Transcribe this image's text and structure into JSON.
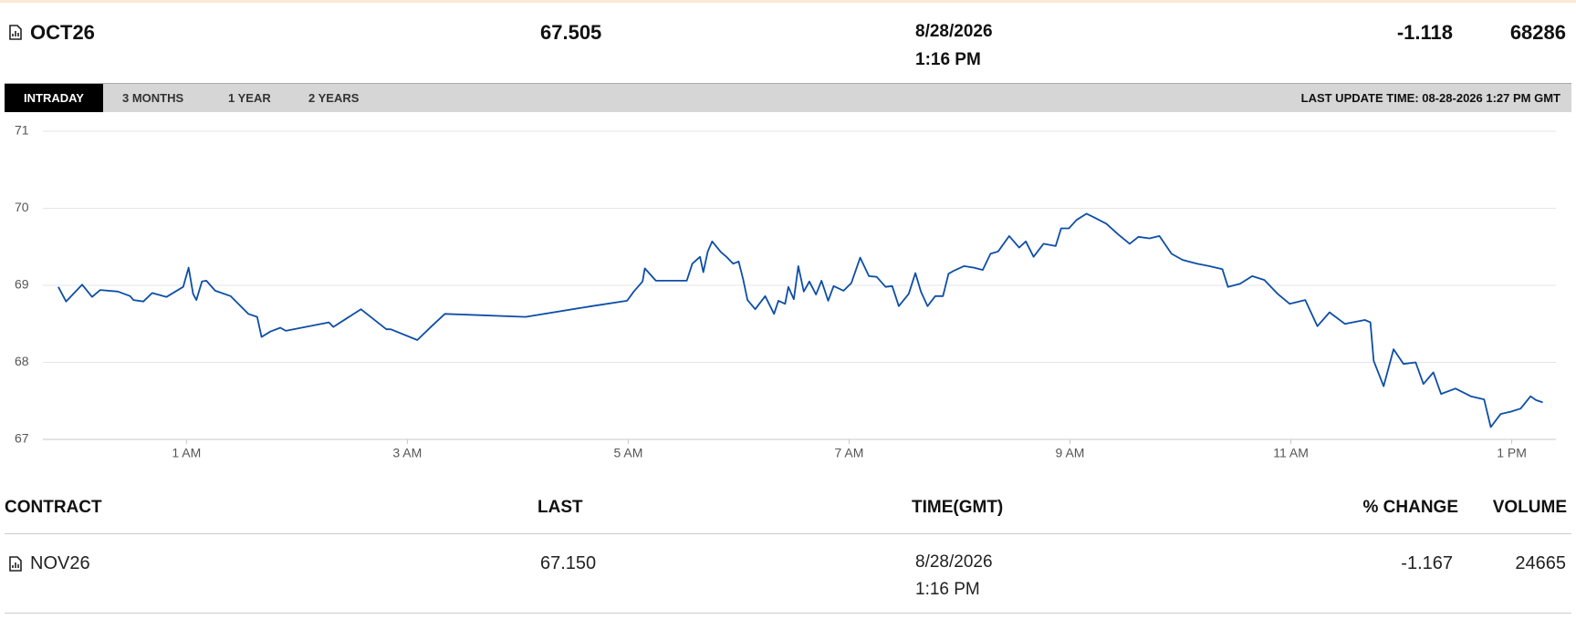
{
  "header": {
    "contract": "OCT26",
    "last": "67.505",
    "date": "8/28/2026",
    "time": "1:16 PM",
    "change": "-1.118",
    "volume": "68286"
  },
  "tabs": [
    "INTRADAY",
    "3 MONTHS",
    "1 YEAR",
    "2 YEARS"
  ],
  "last_update": "LAST UPDATE TIME: 08-28-2026 1:27 PM GMT",
  "chart_data": {
    "type": "line",
    "x": [
      -0.16,
      -0.09,
      0.055,
      0.145,
      0.22,
      0.38,
      0.49,
      0.52,
      0.61,
      0.69,
      0.82,
      0.97,
      1.02,
      1.06,
      1.09,
      1.14,
      1.18,
      1.26,
      1.4,
      1.56,
      1.64,
      1.68,
      1.76,
      1.85,
      1.9,
      2.29,
      2.33,
      2.58,
      2.81,
      2.85,
      3.09,
      3.22,
      3.34,
      4.07,
      4.67,
      4.99,
      5.05,
      5.13,
      5.15,
      5.25,
      5.53,
      5.58,
      5.65,
      5.68,
      5.72,
      5.76,
      5.84,
      5.89,
      5.95,
      6.0,
      6.04,
      6.08,
      6.15,
      6.24,
      6.32,
      6.36,
      6.42,
      6.45,
      6.5,
      6.54,
      6.59,
      6.64,
      6.7,
      6.75,
      6.81,
      6.86,
      6.95,
      7.02,
      7.1,
      7.18,
      7.25,
      7.33,
      7.39,
      7.45,
      7.54,
      7.6,
      7.65,
      7.71,
      7.78,
      7.85,
      7.9,
      7.95,
      8.04,
      8.13,
      8.21,
      8.28,
      8.35,
      8.45,
      8.54,
      8.6,
      8.67,
      8.76,
      8.87,
      8.92,
      8.99,
      9.06,
      9.15,
      9.22,
      9.33,
      9.43,
      9.54,
      9.62,
      9.72,
      9.81,
      9.92,
      10.02,
      10.15,
      10.26,
      10.38,
      10.43,
      10.54,
      10.65,
      10.76,
      10.88,
      10.99,
      11.13,
      11.24,
      11.35,
      11.49,
      11.67,
      11.72,
      11.75,
      11.84,
      11.93,
      12.02,
      12.13,
      12.2,
      12.29,
      12.36,
      12.49,
      12.63,
      12.75,
      12.81,
      12.9,
      12.99,
      13.08,
      13.17,
      13.22,
      13.28
    ],
    "series": [
      {
        "color": "#0d4ea6",
        "values": [
          68.98,
          68.79,
          69.01,
          68.85,
          68.94,
          68.92,
          68.86,
          68.81,
          68.79,
          68.9,
          68.85,
          68.98,
          69.23,
          68.89,
          68.81,
          69.05,
          69.06,
          68.93,
          68.86,
          68.63,
          68.59,
          68.33,
          68.4,
          68.45,
          68.41,
          68.52,
          68.46,
          68.69,
          68.43,
          68.43,
          68.29,
          68.47,
          68.63,
          68.59,
          68.73,
          68.8,
          68.92,
          69.05,
          69.22,
          69.06,
          69.06,
          69.28,
          69.37,
          69.17,
          69.44,
          69.57,
          69.43,
          69.37,
          69.28,
          69.31,
          69.08,
          68.81,
          68.69,
          68.86,
          68.63,
          68.8,
          68.76,
          68.98,
          68.82,
          69.25,
          68.92,
          69.05,
          68.88,
          69.06,
          68.8,
          68.99,
          68.93,
          69.03,
          69.36,
          69.12,
          69.11,
          68.98,
          68.99,
          68.73,
          68.89,
          69.16,
          68.92,
          68.73,
          68.86,
          68.86,
          69.15,
          69.19,
          69.25,
          69.23,
          69.2,
          69.41,
          69.44,
          69.64,
          69.49,
          69.57,
          69.37,
          69.54,
          69.51,
          69.74,
          69.74,
          69.85,
          69.93,
          69.88,
          69.8,
          69.67,
          69.54,
          69.63,
          69.61,
          69.64,
          69.41,
          69.33,
          69.28,
          69.25,
          69.21,
          68.98,
          69.02,
          69.12,
          69.07,
          68.89,
          68.76,
          68.81,
          68.47,
          68.65,
          68.5,
          68.55,
          68.52,
          68.02,
          67.69,
          68.17,
          67.98,
          68.0,
          67.72,
          67.87,
          67.59,
          67.66,
          67.56,
          67.52,
          67.16,
          67.33,
          67.36,
          67.4,
          67.56,
          67.51,
          67.48
        ]
      }
    ],
    "xlim": [
      -0.3,
      13.4
    ],
    "ylim": [
      67,
      71
    ],
    "yticks": [
      67,
      68,
      69,
      70,
      71
    ],
    "xticks": [
      {
        "value": 1,
        "label": "1 AM"
      },
      {
        "value": 3,
        "label": "3 AM"
      },
      {
        "value": 5,
        "label": "5 AM"
      },
      {
        "value": 7,
        "label": "7 AM"
      },
      {
        "value": 9,
        "label": "9 AM"
      },
      {
        "value": 11,
        "label": "11 AM"
      },
      {
        "value": 13,
        "label": "1 PM"
      }
    ],
    "grid": true
  },
  "table": {
    "columns": [
      "CONTRACT",
      "LAST",
      "TIME(GMT)",
      "% CHANGE",
      "VOLUME"
    ],
    "rows": [
      {
        "contract": "NOV26",
        "last": "67.150",
        "date": "8/28/2026",
        "time": "1:16 PM",
        "change": "-1.167",
        "volume": "24665"
      }
    ]
  }
}
